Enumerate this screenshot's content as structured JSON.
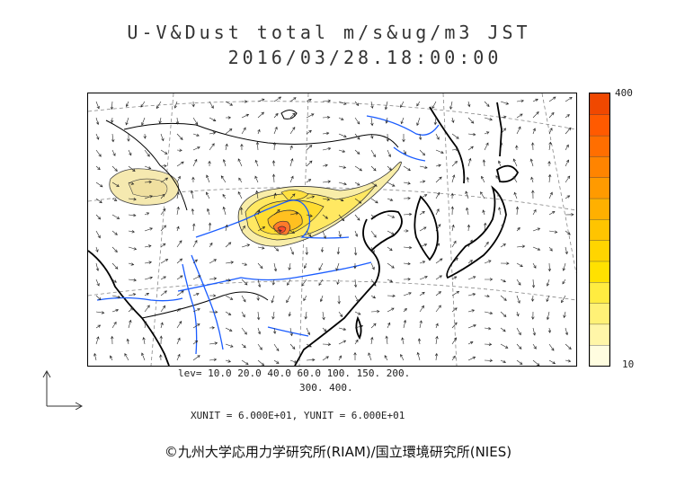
{
  "header": {
    "title_line1": "U-V&Dust total m/s&ug/m3 JST",
    "title_line2": "2016/03/28.18:00:00"
  },
  "colorbar": {
    "max_label": "400",
    "min_label": "10",
    "colors": [
      "#fffde0",
      "#fff6a8",
      "#fff176",
      "#ffec40",
      "#ffe100",
      "#ffd500",
      "#ffc400",
      "#ffb000",
      "#ff9a00",
      "#ff8400",
      "#ff6e00",
      "#ff5a00",
      "#f04800"
    ]
  },
  "levels": {
    "line1": "lev= 10.0 20.0 40.0 60.0 100. 150. 200.",
    "line2": "300. 400."
  },
  "units_text": "XUNIT = 6.000E+01, YUNIT = 6.000E+01",
  "credit": "©九州大学応用力学研究所(RIAM)/国立環境研究所(NIES)",
  "map_colors": {
    "coast": "#000000",
    "river": "#1a5cff",
    "grid": "#777777",
    "contour": "#333333",
    "dust_low": "#f5e9b0",
    "dust_mid": "#ffe84a",
    "dust_high": "#ffc020",
    "dust_peak": "#ff4a2a"
  }
}
